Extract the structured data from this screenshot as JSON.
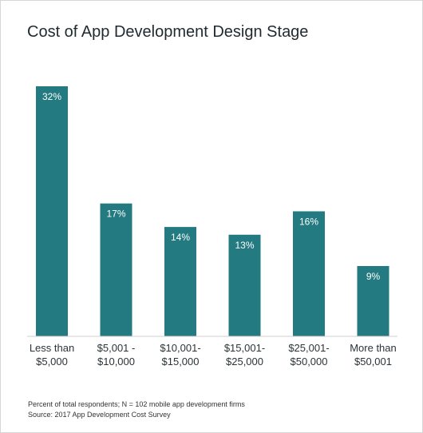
{
  "chart_data": {
    "type": "bar",
    "title": "Cost of App Development Design Stage",
    "categories": [
      [
        "Less than",
        "$5,000"
      ],
      [
        "$5,001 -",
        "$10,000"
      ],
      [
        "$10,001-",
        "$15,000"
      ],
      [
        "$15,001-",
        "$25,000"
      ],
      [
        "$25,001-",
        "$50,000"
      ],
      [
        "More than",
        "$50,001"
      ]
    ],
    "values": [
      32,
      17,
      14,
      13,
      16,
      9
    ],
    "value_labels": [
      "32%",
      "17%",
      "14%",
      "13%",
      "16%",
      "9%"
    ],
    "ylim": [
      0,
      32
    ],
    "grid": false,
    "bar_color": "#237a80"
  },
  "footnotes": {
    "note": "Percent of total respondents; N = 102 mobile app development firms",
    "source": "Source: 2017 App Development Cost Survey"
  }
}
